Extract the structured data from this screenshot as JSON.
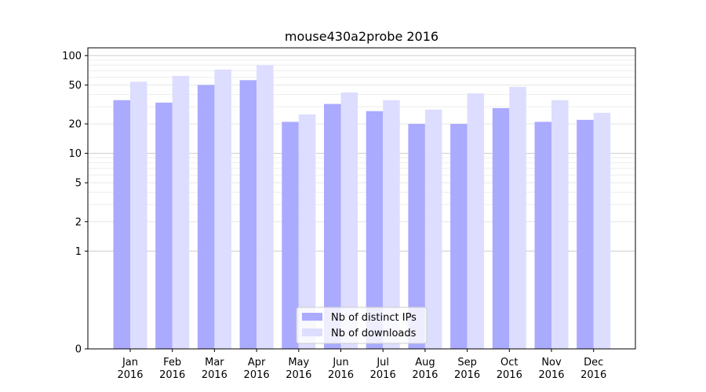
{
  "chart_data": {
    "type": "bar",
    "title": "mouse430a2probe 2016",
    "xlabel": "",
    "ylabel": "",
    "yscale": "symlog",
    "ylim": [
      0,
      120
    ],
    "yticks": [
      0,
      1,
      2,
      5,
      10,
      20,
      50,
      100
    ],
    "grid": true,
    "legend_position": "lower-center",
    "categories": [
      [
        "Jan",
        "2016"
      ],
      [
        "Feb",
        "2016"
      ],
      [
        "Mar",
        "2016"
      ],
      [
        "Apr",
        "2016"
      ],
      [
        "May",
        "2016"
      ],
      [
        "Jun",
        "2016"
      ],
      [
        "Jul",
        "2016"
      ],
      [
        "Aug",
        "2016"
      ],
      [
        "Sep",
        "2016"
      ],
      [
        "Oct",
        "2016"
      ],
      [
        "Nov",
        "2016"
      ],
      [
        "Dec",
        "2016"
      ]
    ],
    "series": [
      {
        "name": "Nb of distinct IPs",
        "color": "#aaaaff",
        "values": [
          35,
          33,
          50,
          56,
          21,
          32,
          27,
          20,
          20,
          29,
          21,
          22
        ]
      },
      {
        "name": "Nb of downloads",
        "color": "#ddddff",
        "values": [
          54,
          62,
          72,
          80,
          25,
          42,
          35,
          28,
          41,
          48,
          35,
          26
        ]
      }
    ]
  }
}
